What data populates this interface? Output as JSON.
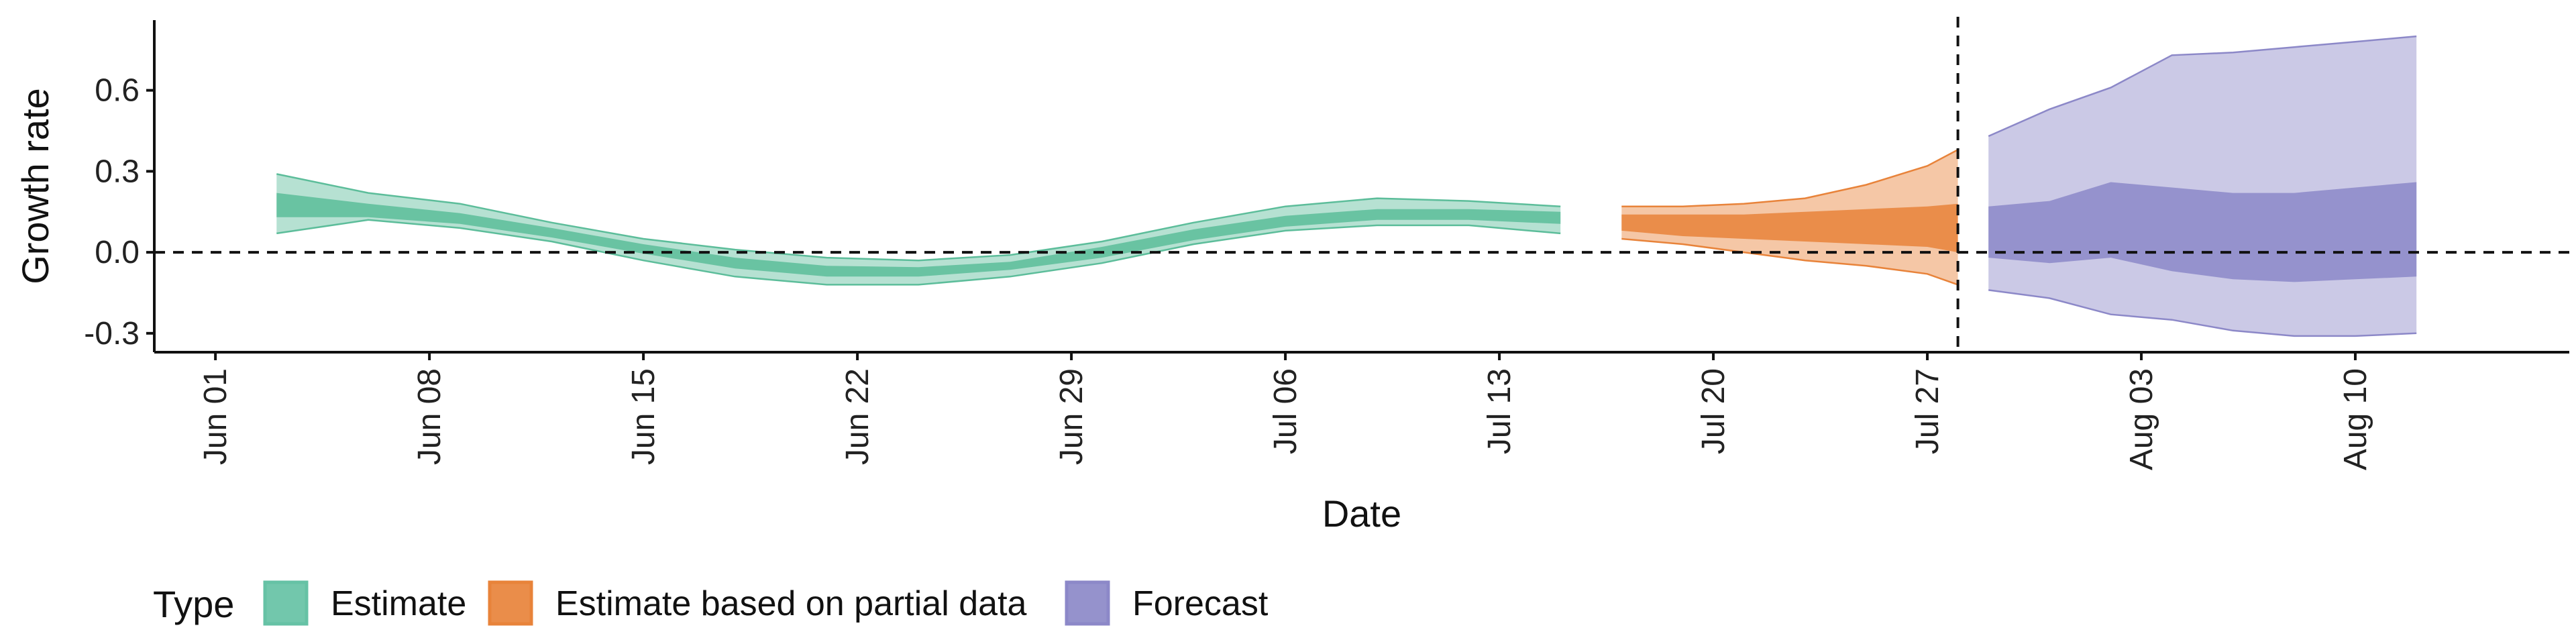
{
  "chart_data": {
    "type": "area",
    "xlabel": "Date",
    "ylabel": "Growth rate",
    "x_ticks": [
      "Jun 01",
      "Jun 08",
      "Jun 15",
      "Jun 22",
      "Jun 29",
      "Jul 06",
      "Jul 13",
      "Jul 20",
      "Jul 27",
      "Aug 03",
      "Aug 10"
    ],
    "y_ticks": [
      "0.6",
      "0.3",
      "0.0",
      "-0.3"
    ],
    "y_tick_values": [
      0.6,
      0.3,
      0.0,
      -0.3
    ],
    "xlim": [
      "2020-05-30",
      "2020-08-17"
    ],
    "ylim": [
      -0.37,
      0.86
    ],
    "reference_lines": [
      {
        "orientation": "horizontal",
        "value": 0.0,
        "style": "dashed"
      },
      {
        "orientation": "vertical",
        "value": "2020-07-28",
        "style": "dashed"
      }
    ],
    "legend": {
      "title": "Type",
      "position": "bottom-left",
      "items": [
        {
          "label": "Estimate",
          "color": "#66c2a5"
        },
        {
          "label": "Estimate based on partial data",
          "color": "#e8833a"
        },
        {
          "label": "Forecast",
          "color": "#8c88c8"
        }
      ]
    },
    "series": [
      {
        "name": "Estimate",
        "color": "#5cbd9a",
        "dates": [
          "2020-06-03",
          "2020-06-06",
          "2020-06-09",
          "2020-06-12",
          "2020-06-15",
          "2020-06-18",
          "2020-06-21",
          "2020-06-24",
          "2020-06-27",
          "2020-06-30",
          "2020-07-03",
          "2020-07-06",
          "2020-07-09",
          "2020-07-12",
          "2020-07-15"
        ],
        "median": [
          0.17,
          0.15,
          0.12,
          0.07,
          0.01,
          -0.04,
          -0.07,
          -0.07,
          -0.05,
          0.0,
          0.06,
          0.11,
          0.14,
          0.14,
          0.13
        ],
        "lower90": [
          0.07,
          0.12,
          0.09,
          0.04,
          -0.03,
          -0.09,
          -0.12,
          -0.12,
          -0.09,
          -0.04,
          0.03,
          0.08,
          0.1,
          0.1,
          0.07
        ],
        "upper90": [
          0.29,
          0.22,
          0.18,
          0.11,
          0.05,
          0.01,
          -0.02,
          -0.03,
          -0.01,
          0.04,
          0.11,
          0.17,
          0.2,
          0.19,
          0.17
        ],
        "lower50": [
          0.13,
          0.13,
          0.105,
          0.055,
          -0.005,
          -0.06,
          -0.09,
          -0.09,
          -0.065,
          -0.02,
          0.045,
          0.095,
          0.12,
          0.12,
          0.105
        ],
        "upper50": [
          0.22,
          0.18,
          0.145,
          0.09,
          0.03,
          -0.02,
          -0.05,
          -0.055,
          -0.035,
          0.02,
          0.085,
          0.135,
          0.16,
          0.16,
          0.15
        ]
      },
      {
        "name": "Estimate based on partial data",
        "color": "#e8833a",
        "dates": [
          "2020-07-17",
          "2020-07-19",
          "2020-07-21",
          "2020-07-23",
          "2020-07-25",
          "2020-07-27",
          "2020-07-28"
        ],
        "median": [
          0.11,
          0.1,
          0.1,
          0.11,
          0.12,
          0.13,
          0.13
        ],
        "lower90": [
          0.05,
          0.03,
          0.0,
          -0.03,
          -0.05,
          -0.08,
          -0.12
        ],
        "upper90": [
          0.17,
          0.17,
          0.18,
          0.2,
          0.25,
          0.32,
          0.38
        ],
        "lower50": [
          0.08,
          0.06,
          0.05,
          0.04,
          0.03,
          0.02,
          0.0
        ],
        "upper50": [
          0.14,
          0.14,
          0.14,
          0.15,
          0.16,
          0.17,
          0.18
        ]
      },
      {
        "name": "Forecast",
        "color": "#8c88c8",
        "dates": [
          "2020-07-29",
          "2020-07-31",
          "2020-08-02",
          "2020-08-04",
          "2020-08-06",
          "2020-08-08",
          "2020-08-10",
          "2020-08-12"
        ],
        "median": [
          0.1,
          0.1,
          0.1,
          0.08,
          0.06,
          0.06,
          0.07,
          0.09
        ],
        "lower90": [
          -0.14,
          -0.17,
          -0.23,
          -0.25,
          -0.29,
          -0.31,
          -0.31,
          -0.3
        ],
        "upper90": [
          0.43,
          0.53,
          0.61,
          0.73,
          0.74,
          0.76,
          0.78,
          0.8
        ],
        "lower50": [
          -0.02,
          -0.04,
          -0.02,
          -0.07,
          -0.1,
          -0.11,
          -0.1,
          -0.09
        ],
        "upper50": [
          0.17,
          0.19,
          0.26,
          0.24,
          0.22,
          0.22,
          0.24,
          0.26
        ]
      }
    ]
  }
}
